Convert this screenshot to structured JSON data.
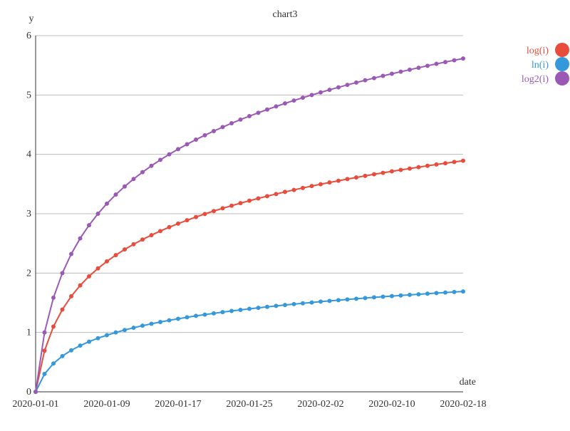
{
  "chart_data": {
    "type": "line",
    "title": "chart3",
    "xlabel": "date",
    "ylabel": "y",
    "ylim": [
      0,
      6
    ],
    "xlim": [
      "2020-01-01",
      "2020-02-18"
    ],
    "yticks": [
      "0",
      "1",
      "2",
      "3",
      "4",
      "5",
      "6"
    ],
    "xticks": [
      "2020-01-01",
      "2020-01-09",
      "2020-01-17",
      "2020-01-25",
      "2020-02-02",
      "2020-02-10",
      "2020-02-18"
    ],
    "grid": "horizontal",
    "legend_position": "top-right",
    "x": [
      "2020-01-01",
      "2020-01-02",
      "2020-01-03",
      "2020-01-04",
      "2020-01-05",
      "2020-01-06",
      "2020-01-07",
      "2020-01-08",
      "2020-01-09",
      "2020-01-10",
      "2020-01-11",
      "2020-01-12",
      "2020-01-13",
      "2020-01-14",
      "2020-01-15",
      "2020-01-16",
      "2020-01-17",
      "2020-01-18",
      "2020-01-19",
      "2020-01-20",
      "2020-01-21",
      "2020-01-22",
      "2020-01-23",
      "2020-01-24",
      "2020-01-25",
      "2020-01-26",
      "2020-01-27",
      "2020-01-28",
      "2020-01-29",
      "2020-01-30",
      "2020-01-31",
      "2020-02-01",
      "2020-02-02",
      "2020-02-03",
      "2020-02-04",
      "2020-02-05",
      "2020-02-06",
      "2020-02-07",
      "2020-02-08",
      "2020-02-09",
      "2020-02-10",
      "2020-02-11",
      "2020-02-12",
      "2020-02-13",
      "2020-02-14",
      "2020-02-15",
      "2020-02-16",
      "2020-02-17",
      "2020-02-18"
    ],
    "series": [
      {
        "name": "log(i)",
        "color": "#e74c3c",
        "values": [
          0,
          0.693,
          1.099,
          1.386,
          1.609,
          1.792,
          1.946,
          2.079,
          2.197,
          2.303,
          2.398,
          2.485,
          2.565,
          2.639,
          2.708,
          2.773,
          2.833,
          2.89,
          2.944,
          2.996,
          3.045,
          3.091,
          3.135,
          3.178,
          3.219,
          3.258,
          3.296,
          3.332,
          3.367,
          3.401,
          3.434,
          3.466,
          3.497,
          3.526,
          3.555,
          3.584,
          3.611,
          3.638,
          3.664,
          3.689,
          3.714,
          3.738,
          3.761,
          3.784,
          3.807,
          3.829,
          3.85,
          3.871,
          3.892
        ]
      },
      {
        "name": "ln(i)",
        "color": "#3498db",
        "values": [
          0,
          0.301,
          0.477,
          0.602,
          0.699,
          0.778,
          0.845,
          0.903,
          0.954,
          1,
          1.041,
          1.079,
          1.114,
          1.146,
          1.176,
          1.204,
          1.23,
          1.255,
          1.279,
          1.301,
          1.322,
          1.342,
          1.362,
          1.38,
          1.398,
          1.415,
          1.431,
          1.447,
          1.462,
          1.477,
          1.491,
          1.505,
          1.519,
          1.531,
          1.544,
          1.556,
          1.568,
          1.58,
          1.591,
          1.602,
          1.613,
          1.623,
          1.633,
          1.643,
          1.653,
          1.663,
          1.672,
          1.681,
          1.69
        ]
      },
      {
        "name": "log2(i)",
        "color": "#9b59b6",
        "values": [
          0,
          1,
          1.585,
          2,
          2.322,
          2.585,
          2.807,
          3,
          3.17,
          3.322,
          3.459,
          3.585,
          3.7,
          3.807,
          3.907,
          4,
          4.087,
          4.17,
          4.248,
          4.322,
          4.392,
          4.459,
          4.524,
          4.585,
          4.644,
          4.7,
          4.755,
          4.807,
          4.858,
          4.907,
          4.954,
          5,
          5.044,
          5.087,
          5.129,
          5.17,
          5.209,
          5.248,
          5.285,
          5.322,
          5.358,
          5.392,
          5.426,
          5.459,
          5.492,
          5.524,
          5.555,
          5.585,
          5.615
        ]
      }
    ]
  }
}
